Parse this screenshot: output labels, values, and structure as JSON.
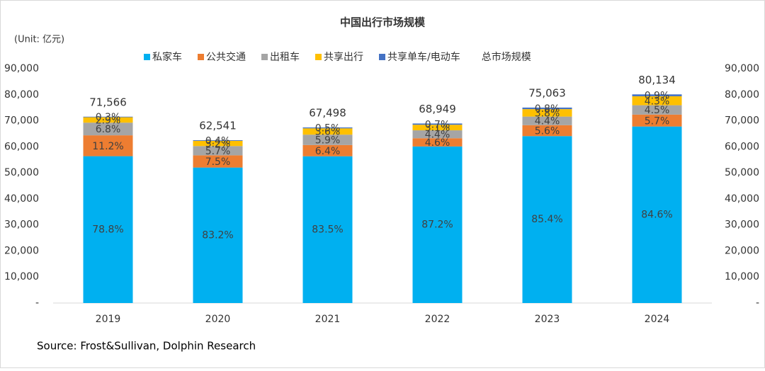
{
  "chart_data": {
    "type": "stacked_bar",
    "title": "中国出行市场规模",
    "unit": "(Unit: 亿元)",
    "source": "Source: Frost&Sullivan, Dolphin Research",
    "categories": [
      "2019",
      "2020",
      "2021",
      "2022",
      "2023",
      "2024"
    ],
    "series": [
      {
        "name": "私家车",
        "color": "#00b0f0",
        "values": [
          78.8,
          83.2,
          83.5,
          87.2,
          85.4,
          84.6
        ],
        "value_labels": [
          "78.8%",
          "83.2%",
          "83.5%",
          "87.2%",
          "85.4%",
          "84.6%"
        ]
      },
      {
        "name": "公共交通",
        "color": "#ed7d31",
        "values": [
          11.2,
          7.5,
          6.4,
          4.6,
          5.6,
          5.7
        ],
        "value_labels": [
          "11.2%",
          "7.5%",
          "6.4%",
          "4.6%",
          "5.6%",
          "5.7%"
        ]
      },
      {
        "name": "出租车",
        "color": "#a5a5a5",
        "values": [
          6.8,
          5.7,
          5.9,
          4.4,
          4.4,
          4.5
        ],
        "value_labels": [
          "6.8%",
          "5.7%",
          "5.9%",
          "4.4%",
          "4.4%",
          "4.5%"
        ]
      },
      {
        "name": "共享出行",
        "color": "#ffc000",
        "values": [
          2.9,
          3.2,
          3.6,
          3.1,
          3.8,
          4.3
        ],
        "value_labels": [
          "2.9%",
          "3.2%",
          "3.6%",
          "3.1%",
          "3.8%",
          "4.3%"
        ]
      },
      {
        "name": "共享单车/电动车",
        "color": "#4472c4",
        "values": [
          0.3,
          0.4,
          0.5,
          0.7,
          0.8,
          0.9
        ],
        "value_labels": [
          "0.3%",
          "0.4%",
          "0.5%",
          "0.7%",
          "0.8%",
          "0.9%"
        ]
      }
    ],
    "totals": {
      "name": "总市场规模",
      "values": [
        71566,
        62541,
        67498,
        68949,
        75063,
        80134
      ],
      "value_labels": [
        "71,566",
        "62,541",
        "67,498",
        "68,949",
        "75,063",
        "80,134"
      ]
    },
    "ylim": [
      0,
      90000
    ],
    "yticks": [
      {
        "value": 0,
        "label": "-"
      },
      {
        "value": 10000,
        "label": "10,000"
      },
      {
        "value": 20000,
        "label": "20,000"
      },
      {
        "value": 30000,
        "label": "30,000"
      },
      {
        "value": 40000,
        "label": "40,000"
      },
      {
        "value": 50000,
        "label": "50,000"
      },
      {
        "value": 60000,
        "label": "60,000"
      },
      {
        "value": 70000,
        "label": "70,000"
      },
      {
        "value": 80000,
        "label": "80,000"
      },
      {
        "value": 90000,
        "label": "90,000"
      }
    ],
    "y2lim": [
      0,
      90000
    ],
    "y2ticks": [
      {
        "value": 0,
        "label": "-"
      },
      {
        "value": 10000,
        "label": "10,000"
      },
      {
        "value": 20000,
        "label": "20,000"
      },
      {
        "value": 30000,
        "label": "30,000"
      },
      {
        "value": 40000,
        "label": "40,000"
      },
      {
        "value": 50000,
        "label": "50,000"
      },
      {
        "value": 60000,
        "label": "60,000"
      },
      {
        "value": 70000,
        "label": "70,000"
      },
      {
        "value": 80000,
        "label": "80,000"
      },
      {
        "value": 90000,
        "label": "90,000"
      }
    ]
  }
}
